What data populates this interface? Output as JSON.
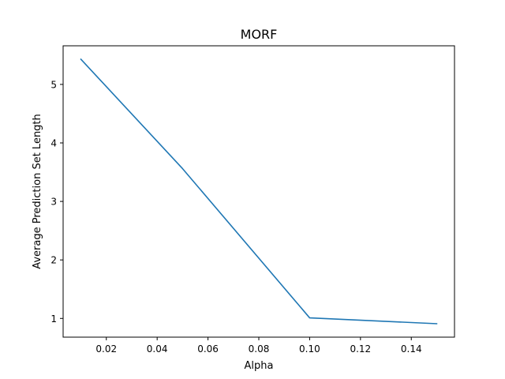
{
  "chart_data": {
    "type": "line",
    "title": "MORF",
    "xlabel": "Alpha",
    "ylabel": "Average Prediction Set Length",
    "xlim": [
      0.003,
      0.157
    ],
    "ylim": [
      0.68,
      5.66
    ],
    "x_ticks": [
      0.02,
      0.04,
      0.06,
      0.08,
      0.1,
      0.12,
      0.14
    ],
    "x_tick_labels": [
      "0.02",
      "0.04",
      "0.06",
      "0.08",
      "0.10",
      "0.12",
      "0.14"
    ],
    "y_ticks": [
      1,
      2,
      3,
      4,
      5
    ],
    "y_tick_labels": [
      "1",
      "2",
      "3",
      "4",
      "5"
    ],
    "grid": false,
    "series": [
      {
        "color": "#1f77b4",
        "x": [
          0.01,
          0.05,
          0.1,
          0.15
        ],
        "y": [
          5.43,
          3.56,
          1.01,
          0.91
        ]
      }
    ]
  }
}
